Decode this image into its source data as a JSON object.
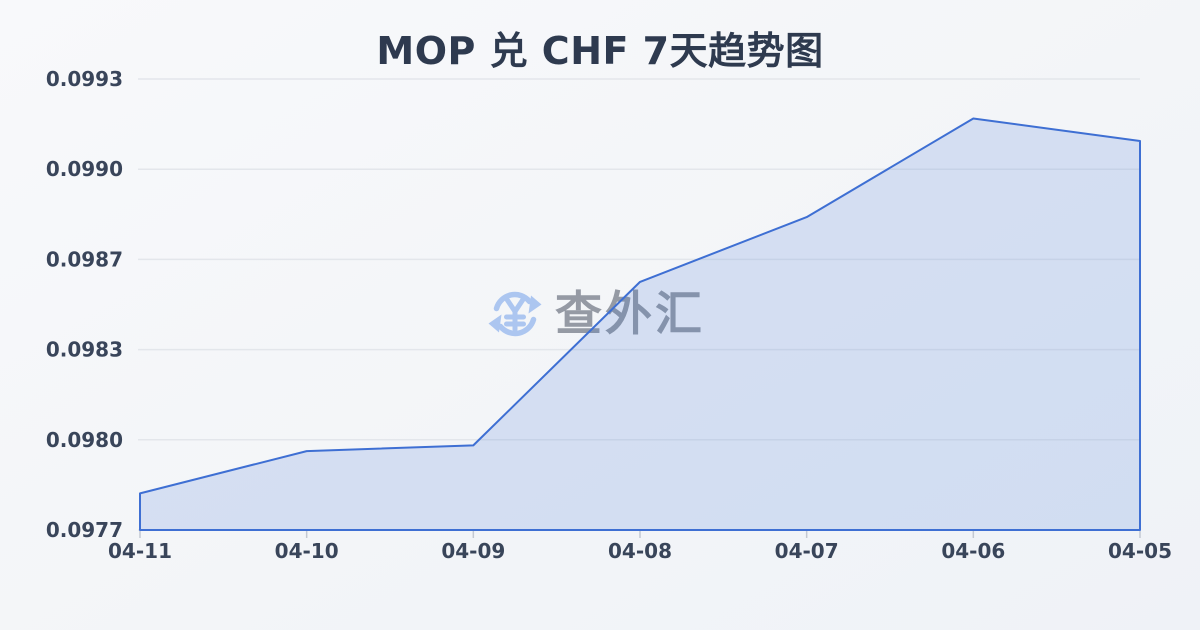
{
  "page": {
    "title": "MOP 兑 CHF 7天趋势图"
  },
  "watermark": {
    "icon": "currency-exchange-icon",
    "text": "查外汇"
  },
  "chart_data": {
    "type": "area",
    "title": "MOP 兑 CHF 7天趋势图",
    "categories": [
      "04-11",
      "04-10",
      "04-09",
      "04-08",
      "04-07",
      "04-06",
      "04-05"
    ],
    "series": [
      {
        "name": "MOP/CHF",
        "values": [
          0.09783,
          0.09798,
          0.098,
          0.09858,
          0.09881,
          0.09916,
          0.09908
        ]
      }
    ],
    "xlabel": "",
    "ylabel": "",
    "ylim": [
      0.0977,
      0.0993
    ],
    "yticks": [
      {
        "label": "0.0977",
        "value": 0.0977
      },
      {
        "label": "0.0980",
        "value": 0.09802
      },
      {
        "label": "0.0983",
        "value": 0.09834
      },
      {
        "label": "0.0987",
        "value": 0.09866
      },
      {
        "label": "0.0990",
        "value": 0.09898
      },
      {
        "label": "0.0993",
        "value": 0.0993
      }
    ],
    "grid": true,
    "legend": false,
    "colors": {
      "line": "#3e6fd3",
      "fill": "rgba(62,111,211,0.17)",
      "gridline": "#e3e6eb",
      "tick_mark": "#c3c8d2",
      "axis_label": "#39455a",
      "title": "#2e3a4f",
      "watermark_icon": "#a6c3f0",
      "watermark_text": "#8e939d"
    }
  }
}
